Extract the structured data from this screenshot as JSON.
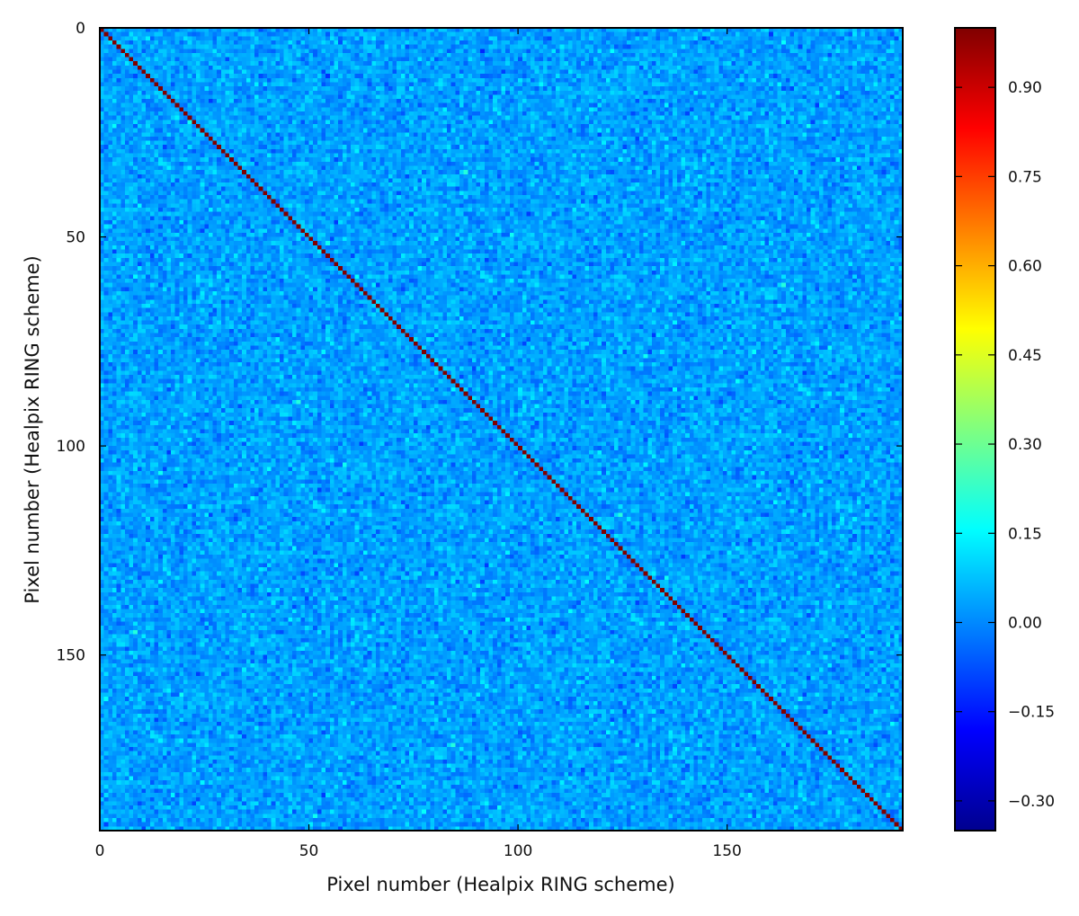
{
  "chart_data": {
    "type": "heatmap",
    "title": "",
    "xlabel": "Pixel number (Healpix RING scheme)",
    "ylabel": "Pixel number (Healpix RING scheme)",
    "matrix_size": 192,
    "xlim": [
      0,
      192
    ],
    "ylim": [
      192,
      0
    ],
    "x_ticks": [
      0,
      50,
      100,
      150
    ],
    "y_ticks": [
      0,
      50,
      100,
      150
    ],
    "diagonal_value": 1.0,
    "off_diagonal_mean": 0.03,
    "off_diagonal_spread": 0.04,
    "colormap": "jet",
    "colorbar": {
      "vmin": -0.35,
      "vmax": 1.0,
      "ticks": [
        -0.3,
        -0.15,
        0.0,
        0.15,
        0.3,
        0.45,
        0.6,
        0.75,
        0.9
      ],
      "tick_labels": [
        "−0.30",
        "−0.15",
        "0.00",
        "0.15",
        "0.30",
        "0.45",
        "0.60",
        "0.75",
        "0.90"
      ]
    },
    "grid": false,
    "legend": "none"
  }
}
